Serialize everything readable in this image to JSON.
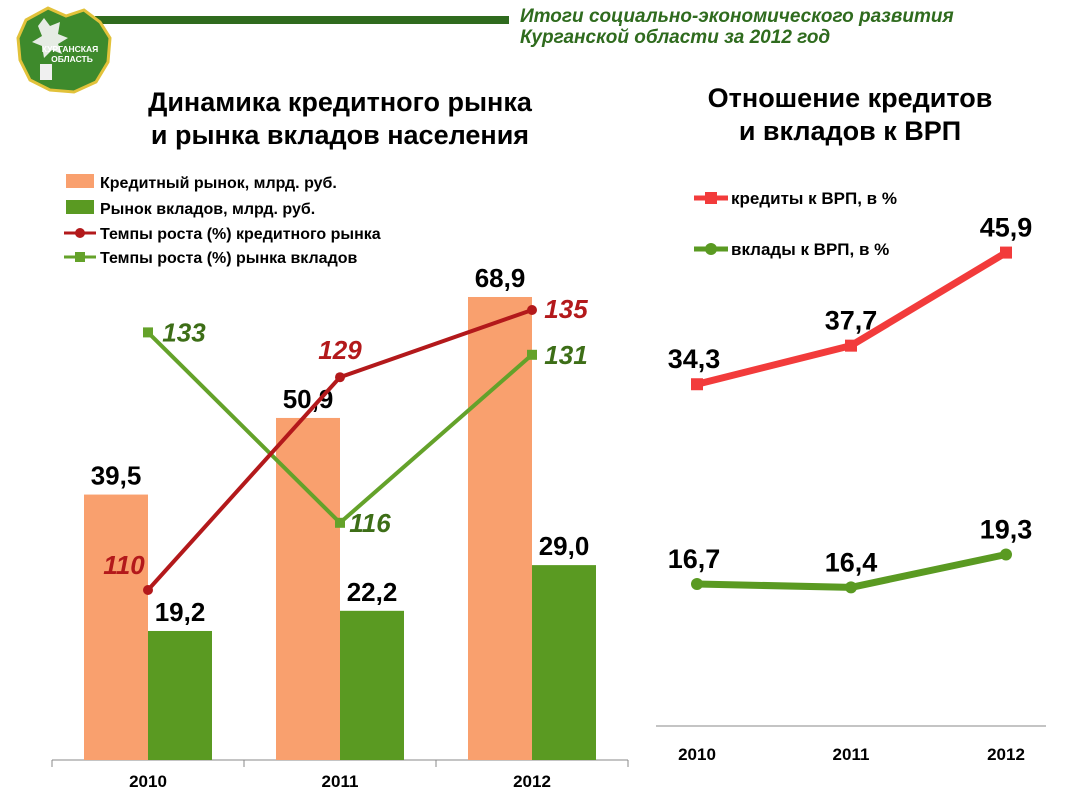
{
  "header": {
    "line1": "Итоги социально-экономического развития",
    "line2": "Курганской области за 2012 год"
  },
  "logo": {
    "line1": "КУРГАНСКАЯ",
    "line2": "ОБЛАСТЬ"
  },
  "colors": {
    "credit_bar": "#f9a06e",
    "deposit_bar": "#5a9a22",
    "credit_rate": "#b3191b",
    "deposit_rate": "#64a22a",
    "credit_vrp": "#f23b3b",
    "deposit_vrp": "#5a9a22",
    "header_green": "#2f6b1e"
  },
  "chart_data": [
    {
      "type": "bar",
      "title_line1": "Динамика кредитного рынка",
      "title_line2": "и рынка вкладов населения",
      "categories": [
        "2010",
        "2011",
        "2012"
      ],
      "legend_position": "top-left",
      "grid": false,
      "series": [
        {
          "name": "Кредитный рынок, млрд. руб.",
          "kind": "bar",
          "values": [
            39.5,
            50.9,
            68.9
          ],
          "labels": [
            "39,5",
            "50,9",
            "68,9"
          ]
        },
        {
          "name": "Рынок вкладов, млрд. руб.",
          "kind": "bar",
          "values": [
            19.2,
            22.2,
            29.0
          ],
          "labels": [
            "19,2",
            "22,2",
            "29,0"
          ]
        },
        {
          "name": "Темпы роста (%) кредитного рынка",
          "kind": "line",
          "marker": "circle",
          "values": [
            110,
            129,
            135
          ],
          "labels": [
            "110",
            "129",
            "135"
          ]
        },
        {
          "name": "Темпы роста (%) рынка вкладов",
          "kind": "line",
          "marker": "square",
          "values": [
            133,
            116,
            131
          ],
          "labels": [
            "133",
            "116",
            "131"
          ]
        }
      ]
    },
    {
      "type": "line",
      "title_line1": "Отношение кредитов",
      "title_line2": "и вкладов к ВРП",
      "categories": [
        "2010",
        "2011",
        "2012"
      ],
      "legend_position": "top-left",
      "grid": false,
      "series": [
        {
          "name": "кредиты к ВРП, в %",
          "marker": "square",
          "values": [
            34.3,
            37.7,
            45.9
          ],
          "labels": [
            "34,3",
            "37,7",
            "45,9"
          ]
        },
        {
          "name": "вклады к ВРП, в %",
          "marker": "circle",
          "values": [
            16.7,
            16.4,
            19.3
          ],
          "labels": [
            "16,7",
            "16,4",
            "19,3"
          ]
        }
      ]
    }
  ]
}
